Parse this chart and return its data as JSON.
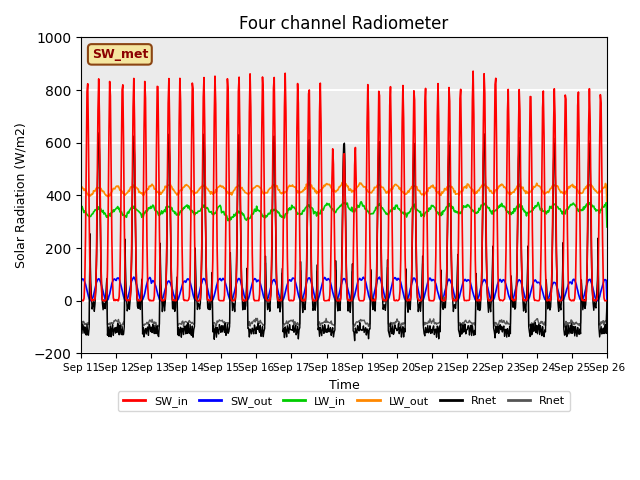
{
  "title": "Four channel Radiometer",
  "xlabel": "Time",
  "ylabel": "Solar Radiation (W/m2)",
  "ylim": [
    -200,
    1000
  ],
  "num_days": 15,
  "tick_labels": [
    "Sep 11",
    "Sep 12",
    "Sep 13",
    "Sep 14",
    "Sep 15",
    "Sep 16",
    "Sep 17",
    "Sep 18",
    "Sep 19",
    "Sep 20",
    "Sep 21",
    "Sep 22",
    "Sep 23",
    "Sep 24",
    "Sep 25",
    "Sep 26"
  ],
  "annotation_text": "SW_met",
  "colors": {
    "SW_in": "#ff0000",
    "SW_out": "#0000ff",
    "LW_in": "#00cc00",
    "LW_out": "#ff8800",
    "Rnet_black": "#000000",
    "Rnet_dark": "#555555"
  },
  "bg_color": "#ebebeb",
  "grid_color": "#ffffff",
  "legend_labels": [
    "SW_in",
    "SW_out",
    "LW_in",
    "LW_out",
    "Rnet",
    "Rnet"
  ],
  "legend_colors": [
    "#ff0000",
    "#0000ff",
    "#00cc00",
    "#ff8800",
    "#000000",
    "#555555"
  ]
}
